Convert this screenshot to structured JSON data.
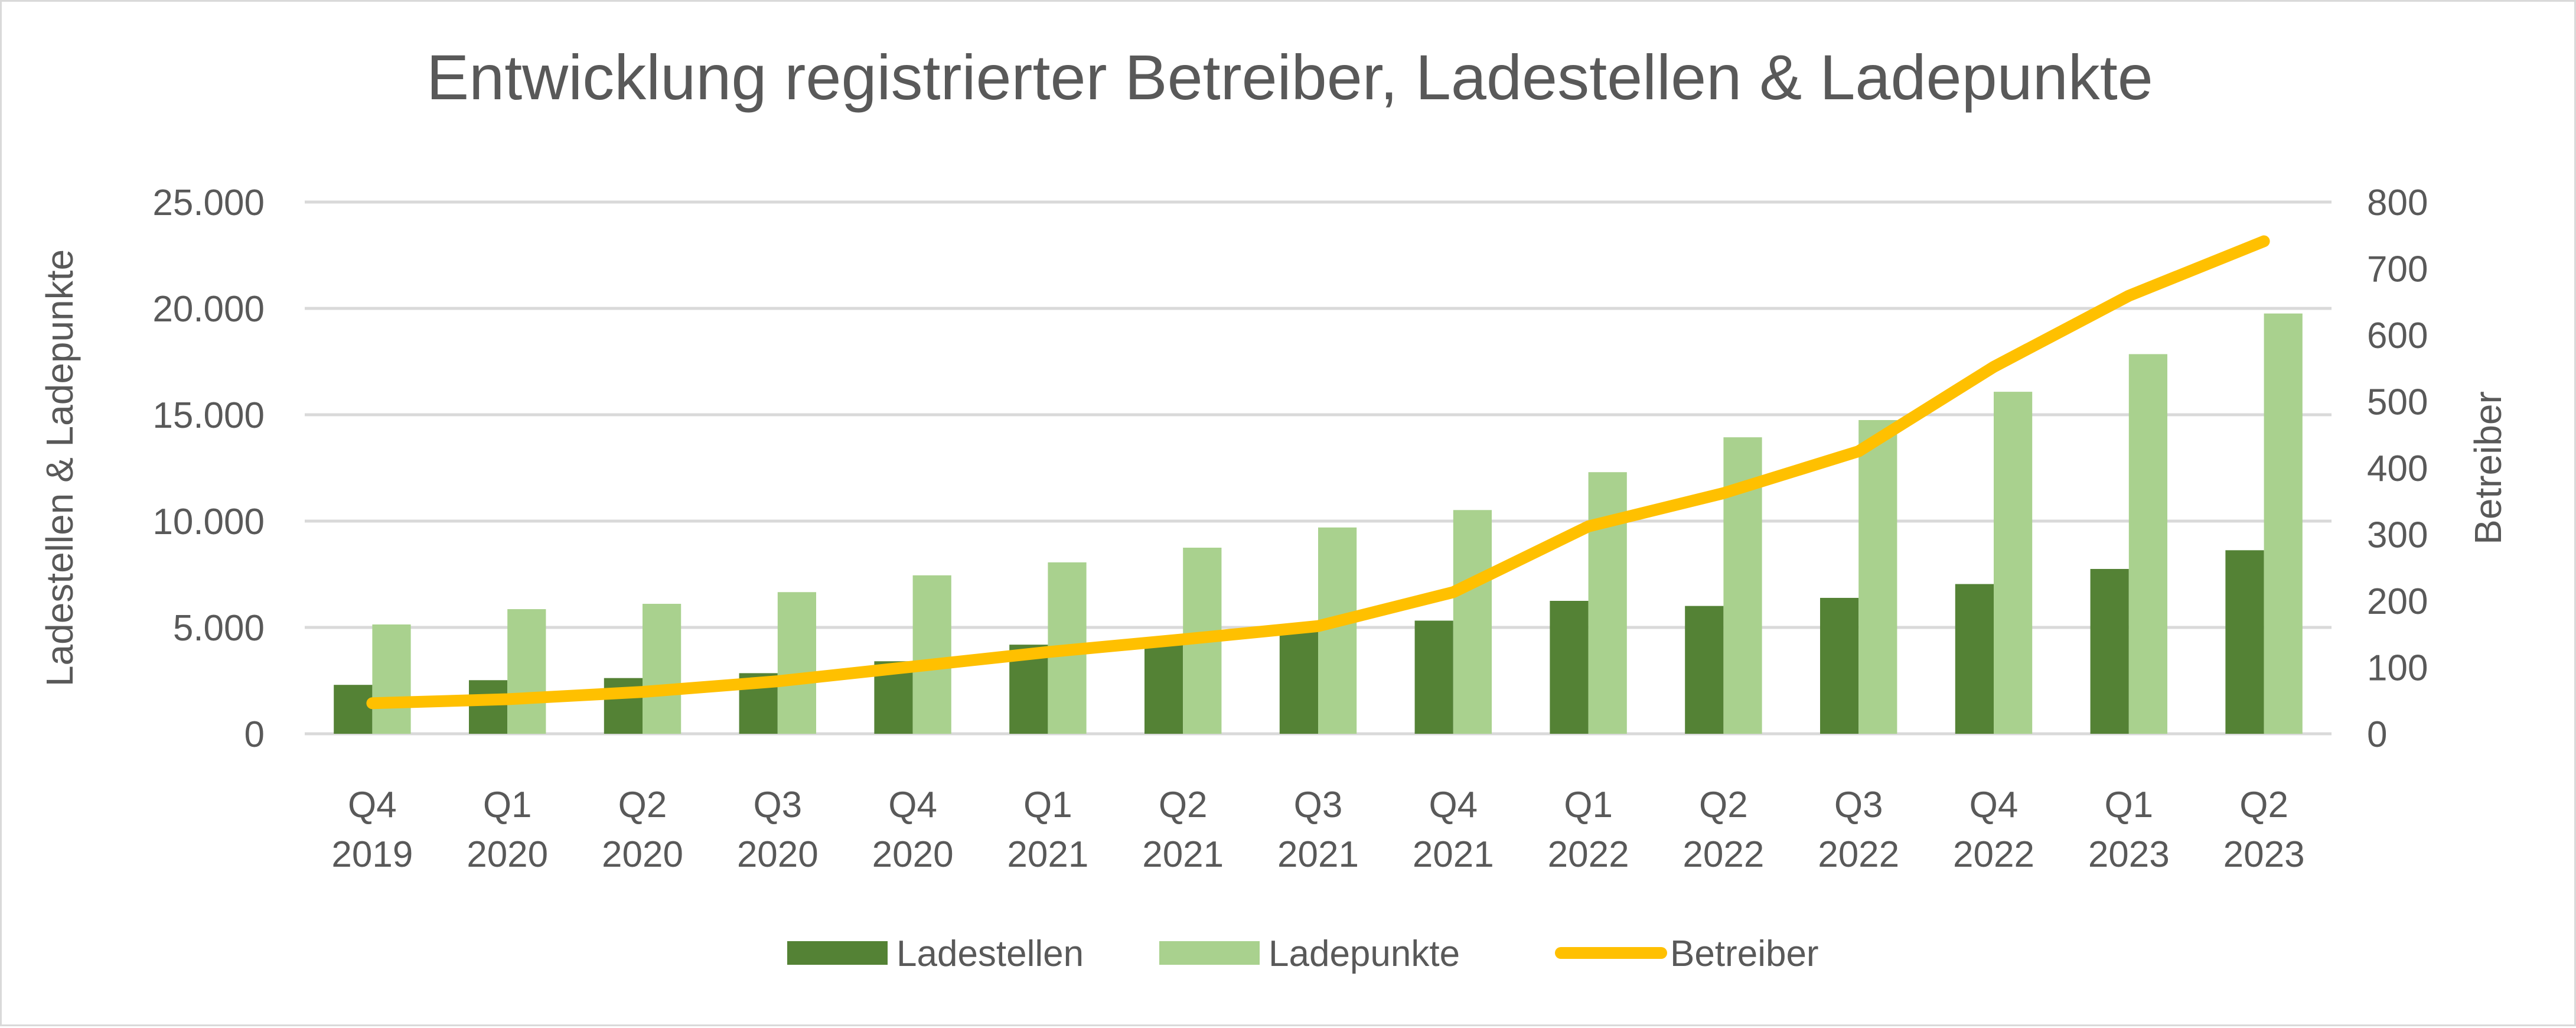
{
  "chart_data": {
    "type": "bar+line",
    "title": "Entwicklung registrierter Betreiber, Ladestellen & Ladepunkte",
    "categories": [
      [
        "Q4",
        "2019"
      ],
      [
        "Q1",
        "2020"
      ],
      [
        "Q2",
        "2020"
      ],
      [
        "Q3",
        "2020"
      ],
      [
        "Q4",
        "2020"
      ],
      [
        "Q1",
        "2021"
      ],
      [
        "Q2",
        "2021"
      ],
      [
        "Q3",
        "2021"
      ],
      [
        "Q4",
        "2021"
      ],
      [
        "Q1",
        "2022"
      ],
      [
        "Q2",
        "2022"
      ],
      [
        "Q3",
        "2022"
      ],
      [
        "Q4",
        "2022"
      ],
      [
        "Q1",
        "2023"
      ],
      [
        "Q2",
        "2023"
      ]
    ],
    "ylabel_left": "Ladestellen & Ladepunkte",
    "ylabel_right": "Betreiber",
    "ylim_left": [
      0,
      25000
    ],
    "ylim_right": [
      0,
      800
    ],
    "yticks_left": [
      "0",
      "5.000",
      "10.000",
      "15.000",
      "20.000",
      "25.000"
    ],
    "yticks_right": [
      "0",
      "100",
      "200",
      "300",
      "400",
      "500",
      "600",
      "700",
      "800"
    ],
    "grid": true,
    "legend_position": "bottom",
    "series": [
      {
        "name": "Ladestellen",
        "type": "bar",
        "axis": "left",
        "color": "#548235",
        "values": [
          2300,
          2520,
          2620,
          2850,
          3410,
          4190,
          4500,
          4850,
          5320,
          6250,
          6010,
          6390,
          7040,
          7750,
          8630
        ]
      },
      {
        "name": "Ladepunkte",
        "type": "bar",
        "axis": "left",
        "color": "#a9d18e",
        "values": [
          5140,
          5860,
          6110,
          6660,
          7450,
          8060,
          8750,
          9700,
          10520,
          12300,
          13940,
          14750,
          16080,
          17850,
          19760
        ]
      },
      {
        "name": "Betreiber",
        "type": "line",
        "axis": "right",
        "color": "#ffc000",
        "values": [
          46,
          52,
          63,
          79,
          101,
          123,
          142,
          162,
          213,
          312,
          362,
          425,
          552,
          659,
          741
        ]
      }
    ]
  }
}
